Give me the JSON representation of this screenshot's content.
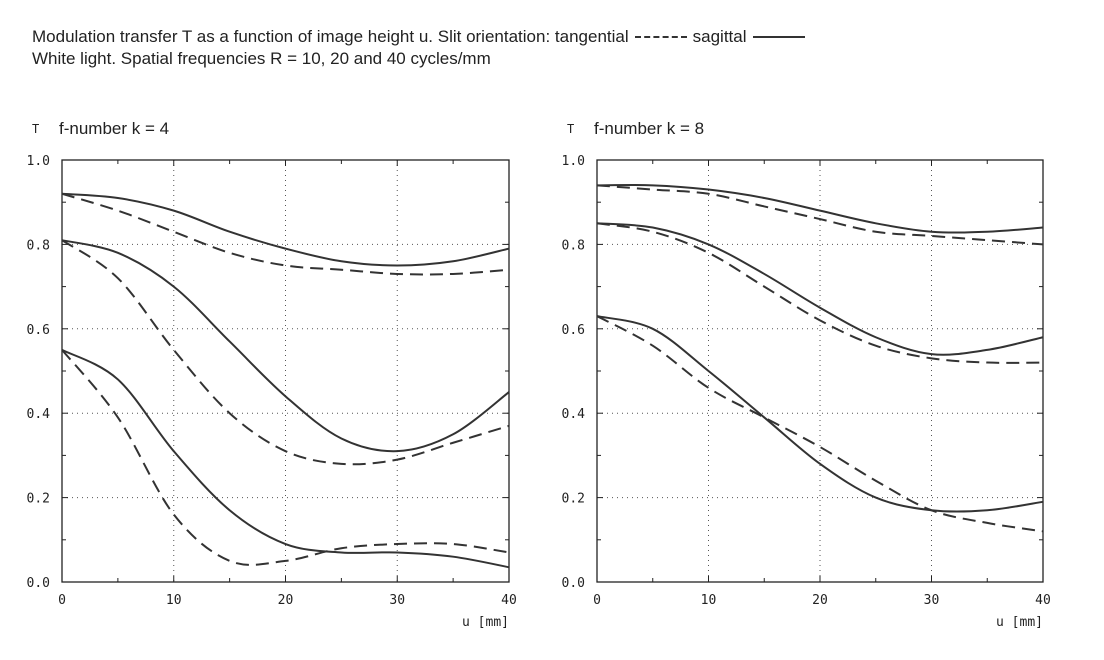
{
  "caption": {
    "line1_prefix": "Modulation transfer T as a function of image height u. Slit orientation: tangential",
    "line1_mid": "sagittal",
    "line2": "White light. Spatial frequencies R = 10, 20 and 40 cycles/mm"
  },
  "colors": {
    "line": "#333333",
    "grid": "#555555",
    "frame": "#222222"
  },
  "chart_data": [
    {
      "type": "line",
      "title": "f-number k = 4",
      "ylabel": "T",
      "xlabel": "u [mm]",
      "xlim": [
        0,
        40
      ],
      "ylim": [
        0,
        1.0
      ],
      "xticks": [
        0,
        10,
        20,
        30,
        40
      ],
      "yticks": [
        0.0,
        0.2,
        0.4,
        0.6,
        0.8,
        1.0
      ],
      "xtick_labels": [
        "0",
        "10",
        "20",
        "30",
        "40"
      ],
      "ytick_labels": [
        "0.0",
        "0.2",
        "0.4",
        "0.6",
        "0.8",
        "1.0"
      ],
      "grid": "dotted",
      "series": [
        {
          "style": "solid",
          "x": [
            0,
            5,
            10,
            15,
            20,
            25,
            30,
            35,
            40
          ],
          "y": [
            0.92,
            0.91,
            0.88,
            0.83,
            0.79,
            0.76,
            0.75,
            0.76,
            0.79
          ]
        },
        {
          "style": "dashed",
          "x": [
            0,
            5,
            10,
            15,
            20,
            25,
            30,
            35,
            40
          ],
          "y": [
            0.92,
            0.88,
            0.83,
            0.78,
            0.75,
            0.74,
            0.73,
            0.73,
            0.74
          ]
        },
        {
          "style": "solid",
          "x": [
            0,
            5,
            10,
            15,
            20,
            25,
            30,
            35,
            40
          ],
          "y": [
            0.81,
            0.78,
            0.7,
            0.57,
            0.44,
            0.34,
            0.31,
            0.35,
            0.45
          ]
        },
        {
          "style": "dashed",
          "x": [
            0,
            5,
            10,
            15,
            20,
            25,
            30,
            35,
            40
          ],
          "y": [
            0.81,
            0.72,
            0.55,
            0.4,
            0.31,
            0.28,
            0.29,
            0.33,
            0.37
          ]
        },
        {
          "style": "solid",
          "x": [
            0,
            5,
            10,
            15,
            20,
            25,
            30,
            35,
            40
          ],
          "y": [
            0.55,
            0.48,
            0.31,
            0.17,
            0.09,
            0.07,
            0.07,
            0.06,
            0.035
          ]
        },
        {
          "style": "dashed",
          "x": [
            0,
            5,
            10,
            15,
            20,
            25,
            30,
            35,
            40
          ],
          "y": [
            0.55,
            0.39,
            0.16,
            0.05,
            0.05,
            0.08,
            0.09,
            0.09,
            0.07
          ]
        }
      ]
    },
    {
      "type": "line",
      "title": "f-number k = 8",
      "ylabel": "T",
      "xlabel": "u [mm]",
      "xlim": [
        0,
        40
      ],
      "ylim": [
        0,
        1.0
      ],
      "xticks": [
        0,
        10,
        20,
        30,
        40
      ],
      "yticks": [
        0.0,
        0.2,
        0.4,
        0.6,
        0.8,
        1.0
      ],
      "xtick_labels": [
        "0",
        "10",
        "20",
        "30",
        "40"
      ],
      "ytick_labels": [
        "0.0",
        "0.2",
        "0.4",
        "0.6",
        "0.8",
        "1.0"
      ],
      "grid": "dotted",
      "series": [
        {
          "style": "solid",
          "x": [
            0,
            5,
            10,
            15,
            20,
            25,
            30,
            35,
            40
          ],
          "y": [
            0.94,
            0.94,
            0.93,
            0.91,
            0.88,
            0.85,
            0.83,
            0.83,
            0.84
          ]
        },
        {
          "style": "dashed",
          "x": [
            0,
            5,
            10,
            15,
            20,
            25,
            30,
            35,
            40
          ],
          "y": [
            0.94,
            0.93,
            0.92,
            0.89,
            0.86,
            0.83,
            0.82,
            0.81,
            0.8
          ]
        },
        {
          "style": "solid",
          "x": [
            0,
            5,
            10,
            15,
            20,
            25,
            30,
            35,
            40
          ],
          "y": [
            0.85,
            0.84,
            0.8,
            0.73,
            0.65,
            0.58,
            0.54,
            0.55,
            0.58
          ]
        },
        {
          "style": "dashed",
          "x": [
            0,
            5,
            10,
            15,
            20,
            25,
            30,
            35,
            40
          ],
          "y": [
            0.85,
            0.83,
            0.78,
            0.7,
            0.62,
            0.56,
            0.53,
            0.52,
            0.52
          ]
        },
        {
          "style": "solid",
          "x": [
            0,
            5,
            10,
            15,
            20,
            25,
            30,
            35,
            40
          ],
          "y": [
            0.63,
            0.6,
            0.5,
            0.39,
            0.28,
            0.2,
            0.17,
            0.17,
            0.19
          ]
        },
        {
          "style": "dashed",
          "x": [
            0,
            5,
            10,
            15,
            20,
            25,
            30,
            35,
            40
          ],
          "y": [
            0.63,
            0.56,
            0.46,
            0.39,
            0.32,
            0.24,
            0.17,
            0.14,
            0.12
          ]
        }
      ]
    }
  ]
}
